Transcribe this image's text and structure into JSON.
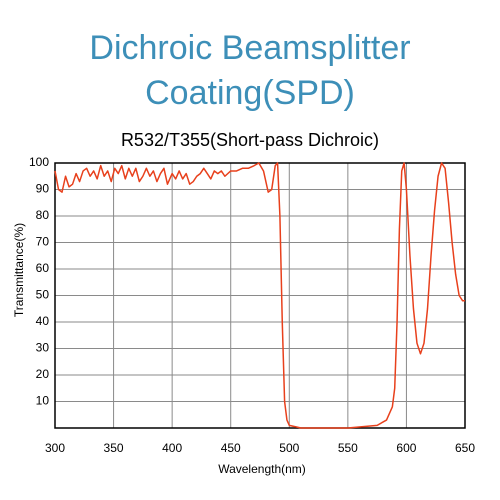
{
  "chart_data": {
    "type": "line",
    "title": [
      "Dichroic Beamsplitter",
      "Coating(SPD)"
    ],
    "subtitle": "R532/T355(Short-pass Dichroic)",
    "xlabel": "Wavelength(nm)",
    "ylabel": "Transmittance(%)",
    "xlim": [
      300,
      650
    ],
    "xticks": [
      300,
      350,
      400,
      450,
      500,
      550,
      600,
      650
    ],
    "ylim": [
      0,
      100
    ],
    "yticks": [
      10,
      20,
      30,
      40,
      50,
      60,
      70,
      80,
      90,
      100
    ],
    "grid": true,
    "series": [
      {
        "color": "#e8401c",
        "x": [
          300,
          303,
          306,
          309,
          312,
          315,
          318,
          321,
          324,
          327,
          330,
          333,
          336,
          339,
          342,
          345,
          348,
          351,
          354,
          357,
          360,
          363,
          366,
          369,
          372,
          375,
          378,
          381,
          384,
          387,
          390,
          393,
          396,
          400,
          403,
          406,
          409,
          412,
          415,
          418,
          421,
          424,
          427,
          430,
          433,
          436,
          439,
          442,
          445,
          450,
          455,
          460,
          465,
          470,
          474,
          478,
          482,
          485,
          488,
          490,
          492,
          494,
          496,
          498,
          500,
          510,
          550,
          575,
          583,
          588,
          590,
          592,
          594,
          596,
          598,
          600,
          603,
          606,
          609,
          612,
          615,
          618,
          621,
          624,
          627,
          630,
          633,
          636,
          639,
          642,
          645,
          648,
          650
        ],
        "values": [
          97,
          90,
          89,
          95,
          91,
          92,
          96,
          93,
          97,
          98,
          95,
          97,
          94,
          99,
          95,
          97,
          93,
          98,
          96,
          99,
          94,
          98,
          95,
          98,
          93,
          95,
          98,
          95,
          97,
          93,
          96,
          98,
          92,
          96,
          94,
          97,
          94,
          96,
          92,
          93,
          95,
          96,
          98,
          96,
          94,
          97,
          96,
          97,
          95,
          97,
          97,
          98,
          98,
          99,
          100,
          97,
          89,
          90,
          99,
          100,
          80,
          40,
          10,
          3,
          1,
          0,
          0,
          1,
          3,
          8,
          15,
          40,
          75,
          97,
          100,
          90,
          65,
          45,
          32,
          28,
          32,
          45,
          65,
          82,
          95,
          100,
          98,
          85,
          70,
          58,
          50,
          48,
          48
        ]
      }
    ]
  }
}
